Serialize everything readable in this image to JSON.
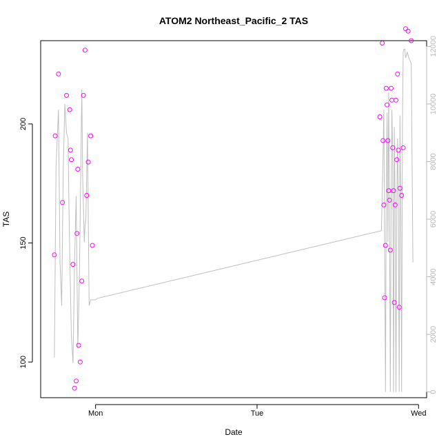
{
  "chart_data": {
    "type": "line",
    "title": "ATOM2 Northeast_Pacific_2 TAS",
    "xlabel": "Date",
    "ylabel": "TAS",
    "x_ticks": [
      {
        "x": 0.0,
        "label": "Mon"
      },
      {
        "x": 1.0,
        "label": "Tue"
      },
      {
        "x": 2.0,
        "label": "Wed"
      }
    ],
    "xlim": [
      -0.34,
      2.05
    ],
    "ylim": [
      85,
      235
    ],
    "y_ticks": [
      100,
      150,
      200
    ],
    "y2lim": [
      -200,
      12200
    ],
    "y2_ticks": [
      0,
      2000,
      4000,
      6000,
      8000,
      10000,
      12000
    ],
    "grid": false,
    "series": [
      {
        "type": "line",
        "axis": "right",
        "color": "#bebebe",
        "x": [
          -0.255,
          -0.245,
          -0.23,
          -0.22,
          -0.21,
          -0.2,
          -0.19,
          -0.18,
          -0.17,
          -0.165,
          -0.16,
          -0.15,
          -0.14,
          -0.13,
          -0.12,
          -0.11,
          -0.1,
          -0.09,
          -0.085,
          -0.08,
          -0.07,
          -0.065,
          -0.06,
          -0.05,
          -0.04,
          -0.03,
          -0.025,
          -0.02,
          -0.01,
          0.0,
          0.01,
          1.77,
          1.78,
          1.785,
          1.79,
          1.795,
          1.8,
          1.805,
          1.81,
          1.815,
          1.82,
          1.825,
          1.83,
          1.835,
          1.84,
          1.845,
          1.85,
          1.855,
          1.86,
          1.865,
          1.87,
          1.875,
          1.88,
          1.885,
          1.89,
          1.895,
          1.9,
          1.905,
          1.91,
          1.915,
          1.92,
          1.93,
          1.94,
          1.955,
          1.965
        ],
        "values": [
          1200,
          7800,
          9800,
          4500,
          3000,
          7800,
          10000,
          9000,
          8800,
          6500,
          4800,
          2000,
          1000,
          4500,
          6800,
          1500,
          4000,
          8500,
          10500,
          7500,
          5200,
          5800,
          6000,
          9000,
          3000,
          3200,
          3200,
          3200,
          3200,
          3200,
          3250,
          5600,
          8200,
          9800,
          5000,
          0,
          7000,
          9700,
          5200,
          10400,
          6500,
          0,
          6500,
          9800,
          8000,
          0,
          9200,
          6500,
          0,
          6600,
          8800,
          6200,
          0,
          9600,
          6400,
          0,
          9200,
          11800,
          11900,
          11900,
          11600,
          11800,
          11600,
          11400,
          4500
        ]
      },
      {
        "type": "scatter",
        "axis": "left",
        "color": "#ff00ff",
        "marker": "open-circle",
        "x": [
          -0.255,
          -0.25,
          -0.23,
          -0.205,
          -0.18,
          -0.16,
          -0.155,
          -0.15,
          -0.14,
          -0.13,
          -0.12,
          -0.115,
          -0.11,
          -0.105,
          -0.095,
          -0.085,
          -0.075,
          -0.065,
          -0.055,
          -0.045,
          -0.03,
          -0.02,
          1.76,
          1.775,
          1.78,
          1.785,
          1.79,
          1.795,
          1.8,
          1.805,
          1.81,
          1.815,
          1.82,
          1.825,
          1.83,
          1.835,
          1.84,
          1.845,
          1.85,
          1.855,
          1.86,
          1.865,
          1.87,
          1.875,
          1.88,
          1.885,
          1.895,
          1.905,
          1.92,
          1.935,
          1.955
        ],
        "values": [
          145,
          195,
          221,
          167,
          212,
          206,
          189,
          185,
          141,
          89,
          92,
          154,
          181,
          107,
          100,
          134,
          212,
          231,
          170,
          184,
          195,
          149,
          203,
          234,
          193,
          166,
          127,
          149,
          215,
          208,
          193,
          172,
          168,
          147,
          215,
          210,
          190,
          172,
          125,
          166,
          210,
          185,
          221,
          189,
          123,
          173,
          170,
          190,
          240,
          239,
          235
        ]
      }
    ]
  }
}
